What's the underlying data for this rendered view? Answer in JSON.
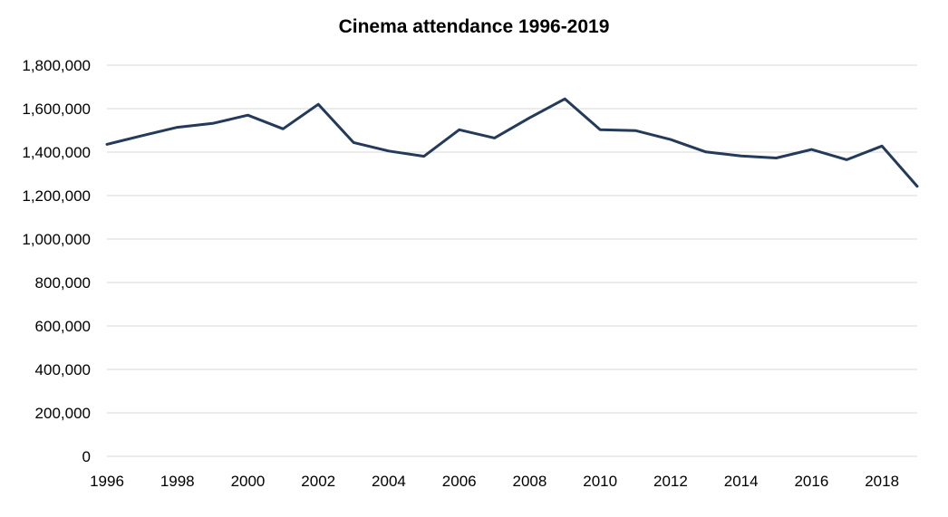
{
  "chart_data": {
    "type": "line",
    "title": "Cinema attendance 1996-2019",
    "xlabel": "",
    "ylabel": "",
    "x": [
      1996,
      1997,
      1998,
      1999,
      2000,
      2001,
      2002,
      2003,
      2004,
      2005,
      2006,
      2007,
      2008,
      2009,
      2010,
      2011,
      2012,
      2013,
      2014,
      2015,
      2016,
      2017,
      2018,
      2019
    ],
    "series": [
      {
        "values": [
          1436000,
          1476000,
          1514000,
          1532000,
          1570000,
          1507000,
          1620000,
          1444000,
          1405000,
          1381000,
          1503000,
          1465000,
          1558000,
          1645000,
          1503000,
          1499000,
          1458000,
          1401000,
          1382000,
          1373000,
          1412000,
          1365000,
          1428000,
          1243000
        ]
      }
    ],
    "ylim": [
      0,
      1800000
    ],
    "xlim": [
      1996,
      2019
    ],
    "yticks": [
      "0",
      "200,000",
      "400,000",
      "600,000",
      "800,000",
      "1,000,000",
      "1,200,000",
      "1,400,000",
      "1,600,000",
      "1,800,000"
    ],
    "xticks": [
      "1996",
      "1998",
      "2000",
      "2002",
      "2004",
      "2006",
      "2008",
      "2010",
      "2012",
      "2014",
      "2016",
      "2018"
    ],
    "grid": true,
    "legend": "none",
    "line_color": "#243a5a",
    "grid_color": "#d9d9d9"
  }
}
